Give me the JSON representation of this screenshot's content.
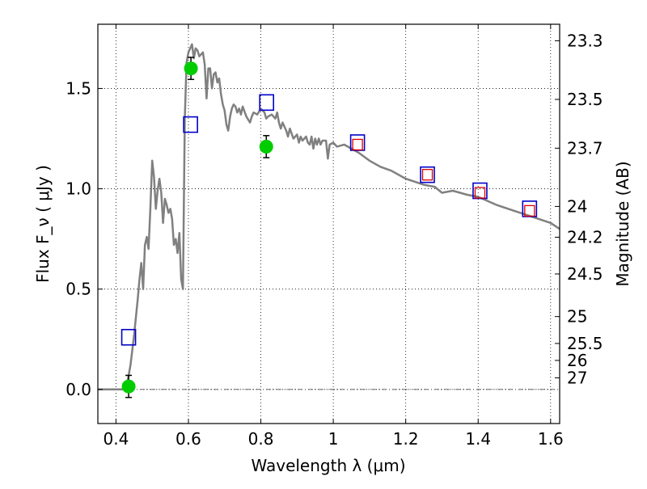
{
  "chart_data": {
    "type": "line",
    "xlabel": "Wavelength  λ (μm)",
    "ylabel": "Flux  F_ν  ( μJy )",
    "ylabel_right": "Magnitude (AB)",
    "xlim": [
      0.35,
      1.625
    ],
    "ylim": [
      -0.17,
      1.82
    ],
    "grid": true,
    "legend": "none",
    "x_ticks": [
      {
        "value": 0.4,
        "label": "0.4"
      },
      {
        "value": 0.6,
        "label": "0.6"
      },
      {
        "value": 0.8,
        "label": "0.8"
      },
      {
        "value": 1.0,
        "label": "1"
      },
      {
        "value": 1.2,
        "label": "1.2"
      },
      {
        "value": 1.4,
        "label": "1.4"
      },
      {
        "value": 1.6,
        "label": "1.6"
      }
    ],
    "y_ticks": [
      {
        "value": 0.0,
        "label": "0.0"
      },
      {
        "value": 0.5,
        "label": "0.5"
      },
      {
        "value": 1.0,
        "label": "1.0"
      },
      {
        "value": 1.5,
        "label": "1.5"
      }
    ],
    "right_ticks": [
      {
        "value": 23.3,
        "label": "23.3"
      },
      {
        "value": 23.5,
        "label": "23.5"
      },
      {
        "value": 23.7,
        "label": "23.7"
      },
      {
        "value": 24.0,
        "label": "24"
      },
      {
        "value": 24.2,
        "label": "24.2"
      },
      {
        "value": 24.5,
        "label": "24.5"
      },
      {
        "value": 25.0,
        "label": "25"
      },
      {
        "value": 25.5,
        "label": "25.5"
      },
      {
        "value": 26.0,
        "label": "26"
      },
      {
        "value": 27.0,
        "label": "27"
      }
    ],
    "series": [
      {
        "type": "line",
        "color": "#808080",
        "points": [
          [
            0.35,
            0.0
          ],
          [
            0.42,
            0.0
          ],
          [
            0.43,
            0.02
          ],
          [
            0.44,
            0.12
          ],
          [
            0.45,
            0.27
          ],
          [
            0.46,
            0.45
          ],
          [
            0.465,
            0.55
          ],
          [
            0.47,
            0.63
          ],
          [
            0.475,
            0.5
          ],
          [
            0.48,
            0.72
          ],
          [
            0.485,
            0.76
          ],
          [
            0.49,
            0.7
          ],
          [
            0.495,
            0.9
          ],
          [
            0.5,
            1.14
          ],
          [
            0.505,
            1.06
          ],
          [
            0.51,
            0.9
          ],
          [
            0.515,
            0.99
          ],
          [
            0.52,
            1.05
          ],
          [
            0.525,
            0.98
          ],
          [
            0.53,
            0.83
          ],
          [
            0.535,
            0.95
          ],
          [
            0.54,
            0.92
          ],
          [
            0.545,
            0.88
          ],
          [
            0.55,
            0.9
          ],
          [
            0.555,
            0.85
          ],
          [
            0.56,
            0.72
          ],
          [
            0.565,
            0.75
          ],
          [
            0.57,
            0.68
          ],
          [
            0.575,
            0.78
          ],
          [
            0.58,
            0.55
          ],
          [
            0.585,
            0.5
          ],
          [
            0.59,
            1.35
          ],
          [
            0.595,
            1.63
          ],
          [
            0.6,
            1.68
          ],
          [
            0.605,
            1.7
          ],
          [
            0.61,
            1.72
          ],
          [
            0.615,
            1.65
          ],
          [
            0.62,
            1.7
          ],
          [
            0.625,
            1.69
          ],
          [
            0.63,
            1.66
          ],
          [
            0.64,
            1.68
          ],
          [
            0.645,
            1.62
          ],
          [
            0.65,
            1.45
          ],
          [
            0.655,
            1.6
          ],
          [
            0.66,
            1.6
          ],
          [
            0.665,
            1.5
          ],
          [
            0.67,
            1.57
          ],
          [
            0.675,
            1.58
          ],
          [
            0.68,
            1.53
          ],
          [
            0.685,
            1.55
          ],
          [
            0.69,
            1.47
          ],
          [
            0.695,
            1.42
          ],
          [
            0.7,
            1.39
          ],
          [
            0.705,
            1.32
          ],
          [
            0.71,
            1.29
          ],
          [
            0.715,
            1.36
          ],
          [
            0.72,
            1.4
          ],
          [
            0.725,
            1.42
          ],
          [
            0.73,
            1.41
          ],
          [
            0.735,
            1.38
          ],
          [
            0.74,
            1.4
          ],
          [
            0.745,
            1.37
          ],
          [
            0.75,
            1.41
          ],
          [
            0.76,
            1.36
          ],
          [
            0.77,
            1.33
          ],
          [
            0.775,
            1.36
          ],
          [
            0.78,
            1.38
          ],
          [
            0.79,
            1.37
          ],
          [
            0.8,
            1.4
          ],
          [
            0.81,
            1.38
          ],
          [
            0.815,
            1.35
          ],
          [
            0.82,
            1.36
          ],
          [
            0.83,
            1.37
          ],
          [
            0.84,
            1.35
          ],
          [
            0.845,
            1.38
          ],
          [
            0.85,
            1.33
          ],
          [
            0.855,
            1.3
          ],
          [
            0.86,
            1.33
          ],
          [
            0.87,
            1.29
          ],
          [
            0.875,
            1.26
          ],
          [
            0.88,
            1.3
          ],
          [
            0.89,
            1.25
          ],
          [
            0.9,
            1.27
          ],
          [
            0.905,
            1.23
          ],
          [
            0.91,
            1.26
          ],
          [
            0.915,
            1.24
          ],
          [
            0.925,
            1.26
          ],
          [
            0.93,
            1.23
          ],
          [
            0.935,
            1.22
          ],
          [
            0.94,
            1.26
          ],
          [
            0.945,
            1.2
          ],
          [
            0.95,
            1.25
          ],
          [
            0.955,
            1.22
          ],
          [
            0.96,
            1.25
          ],
          [
            0.965,
            1.22
          ],
          [
            0.97,
            1.24
          ],
          [
            0.98,
            1.24
          ],
          [
            0.985,
            1.15
          ],
          [
            0.99,
            1.22
          ],
          [
            1.0,
            1.23
          ],
          [
            1.01,
            1.21
          ],
          [
            1.03,
            1.22
          ],
          [
            1.05,
            1.2
          ],
          [
            1.07,
            1.18
          ],
          [
            1.1,
            1.14
          ],
          [
            1.13,
            1.11
          ],
          [
            1.16,
            1.09
          ],
          [
            1.2,
            1.05
          ],
          [
            1.25,
            1.02
          ],
          [
            1.28,
            1.01
          ],
          [
            1.3,
            0.98
          ],
          [
            1.33,
            0.99
          ],
          [
            1.37,
            0.97
          ],
          [
            1.4,
            0.96
          ],
          [
            1.45,
            0.92
          ],
          [
            1.5,
            0.89
          ],
          [
            1.55,
            0.86
          ],
          [
            1.6,
            0.83
          ],
          [
            1.625,
            0.8
          ]
        ]
      },
      {
        "type": "scatter",
        "marker": "circle",
        "color": "#00cc00",
        "points": [
          {
            "x": 0.435,
            "y": 0.015,
            "yerr": 0.055
          },
          {
            "x": 0.607,
            "y": 1.6,
            "yerr": 0.055
          },
          {
            "x": 0.815,
            "y": 1.21,
            "yerr": 0.055
          }
        ]
      },
      {
        "type": "scatter",
        "marker": "square-open",
        "color": "#0000cc",
        "points": [
          {
            "x": 0.435,
            "y": 0.26
          },
          {
            "x": 0.606,
            "y": 1.32
          },
          {
            "x": 0.816,
            "y": 1.43
          },
          {
            "x": 1.067,
            "y": 1.23
          },
          {
            "x": 1.26,
            "y": 1.07
          },
          {
            "x": 1.405,
            "y": 0.99
          },
          {
            "x": 1.542,
            "y": 0.9
          }
        ]
      },
      {
        "type": "scatter",
        "marker": "square-open-small",
        "color": "#dd0000",
        "points": [
          {
            "x": 1.067,
            "y": 1.22
          },
          {
            "x": 1.26,
            "y": 1.07
          },
          {
            "x": 1.405,
            "y": 0.98
          },
          {
            "x": 1.542,
            "y": 0.89
          }
        ]
      }
    ]
  }
}
